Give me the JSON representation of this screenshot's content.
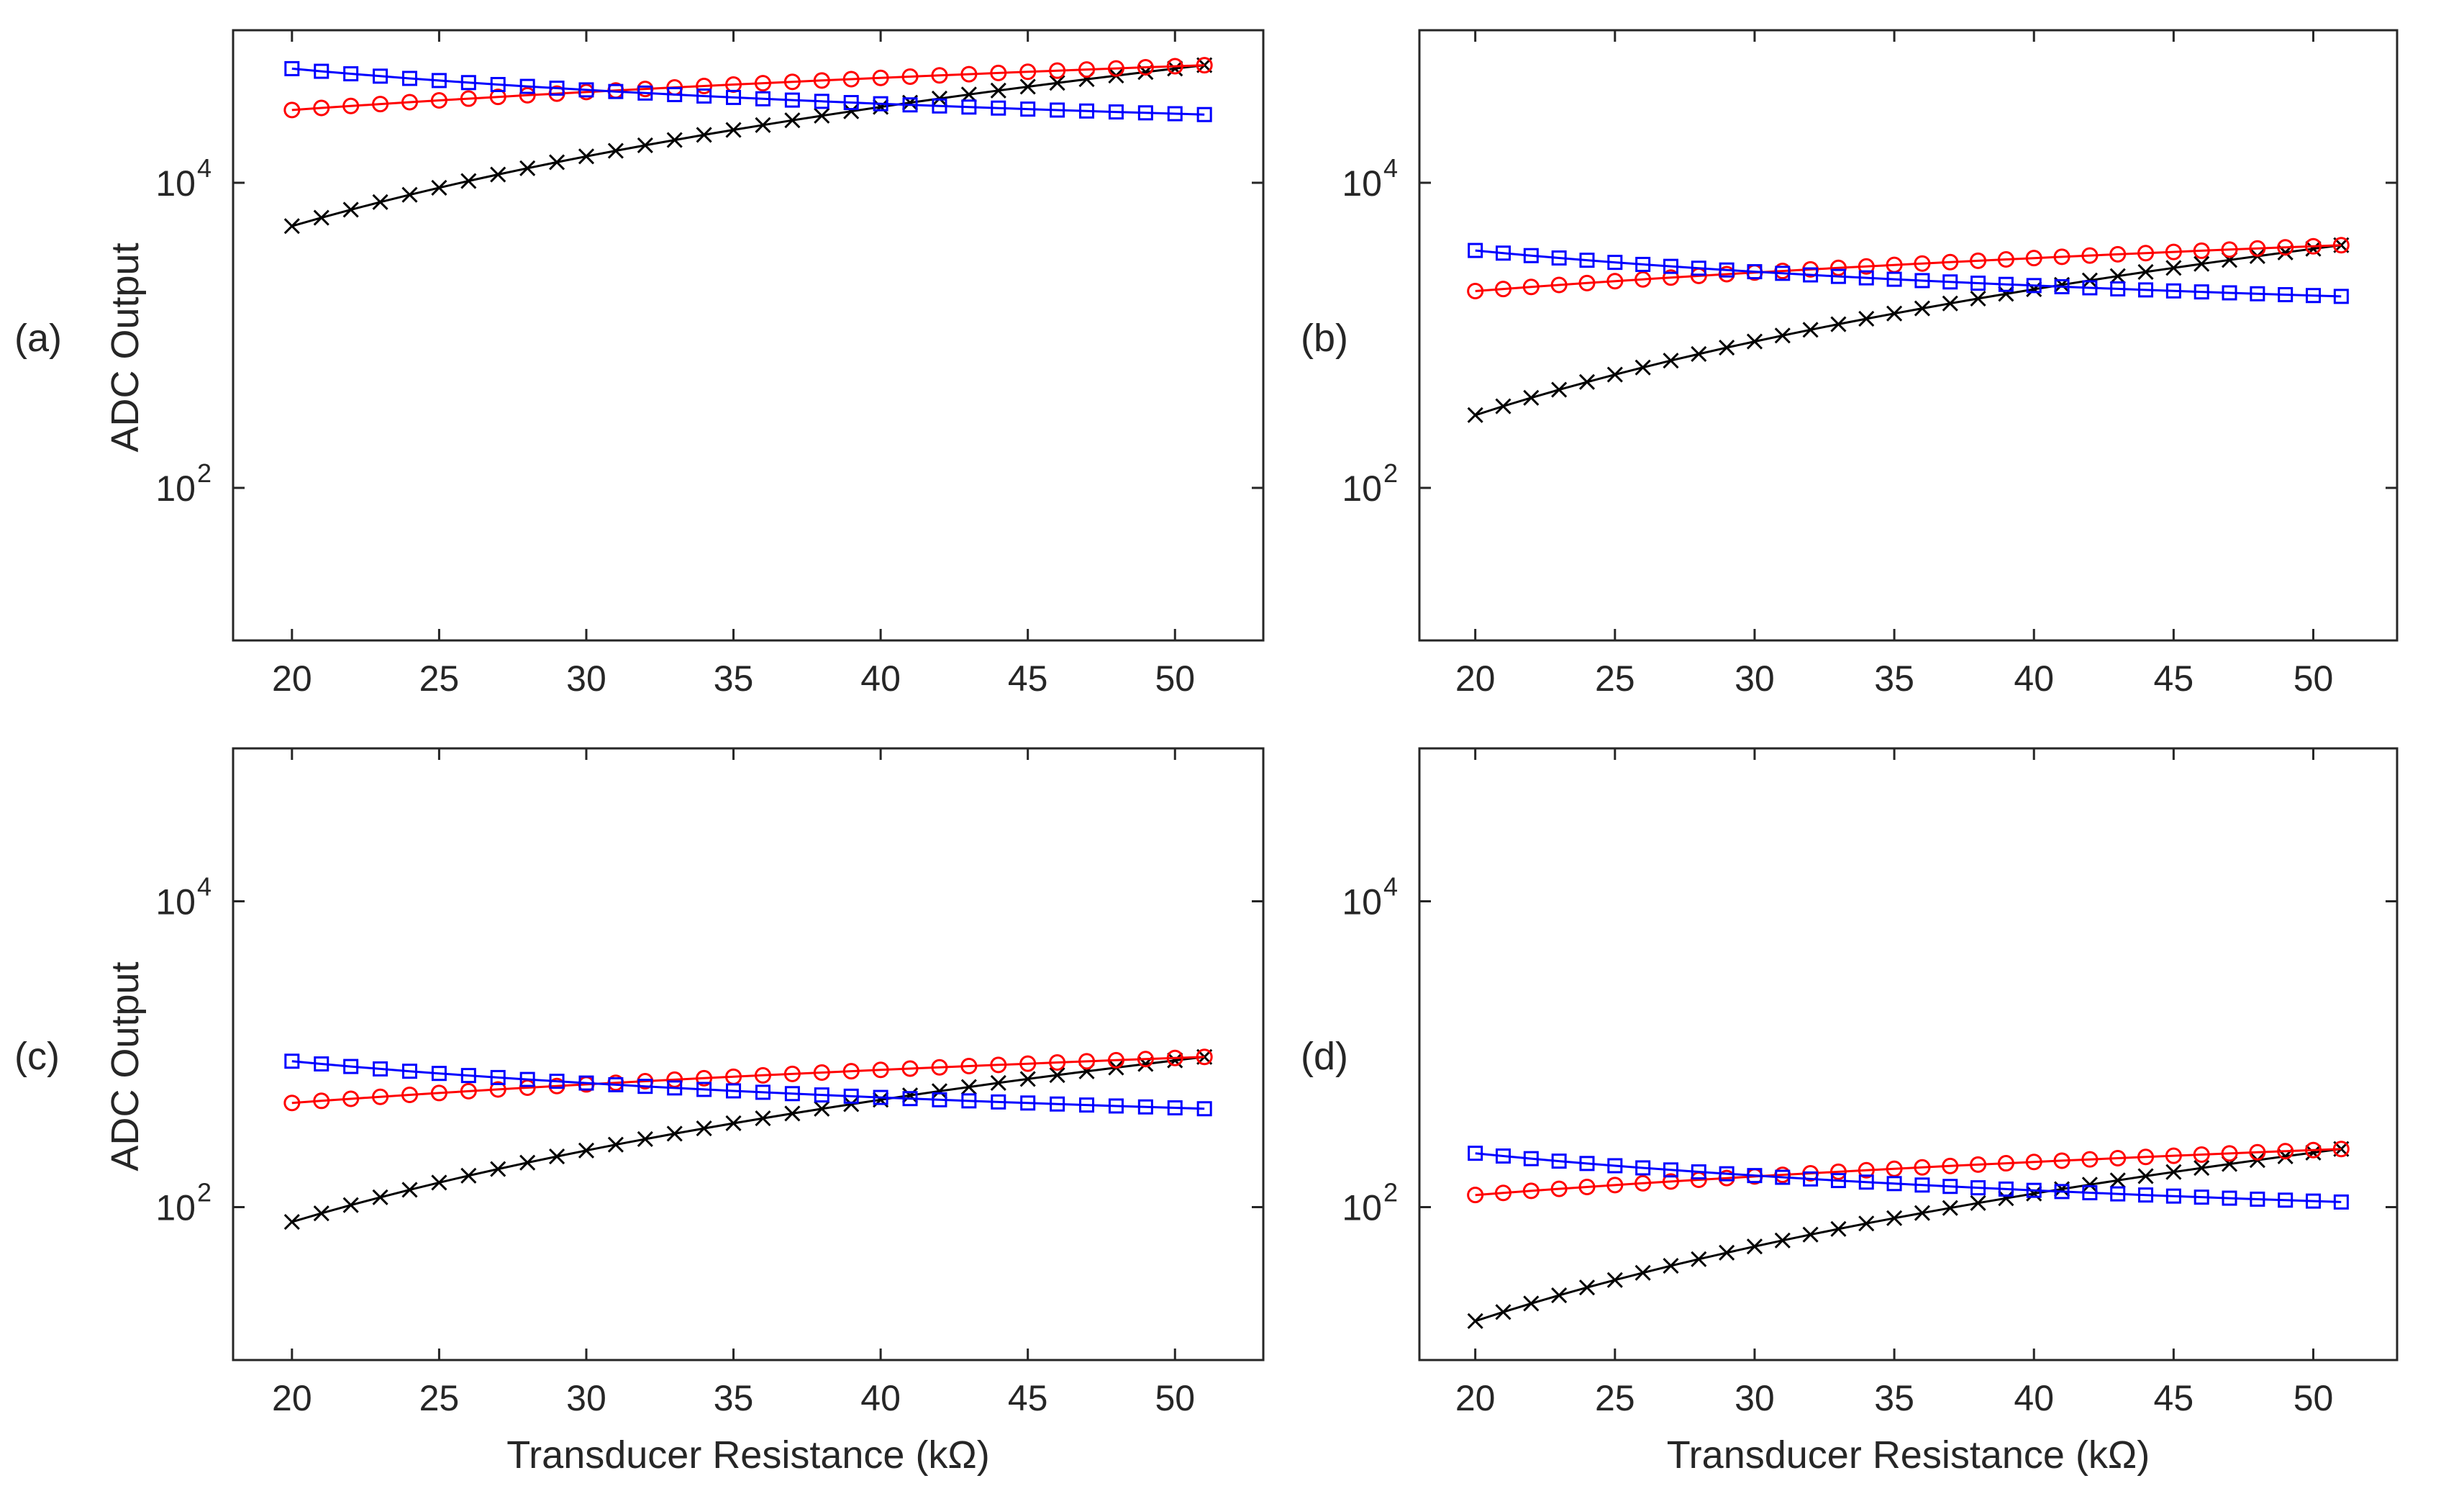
{
  "figure": {
    "y_axis_label": "ADC  Output",
    "x_axis_label": "Transducer Resistance  (kΩ)"
  },
  "colors": {
    "axes": "#262626",
    "series_black": "#000000",
    "series_red": "#ff0000",
    "series_blue": "#0000ff"
  },
  "chart_data": [
    {
      "panel_label": "(a)",
      "type": "line",
      "yscale": "log",
      "xlim": [
        18,
        53
      ],
      "ylim": [
        10,
        100000
      ],
      "x_ticks": [
        20,
        25,
        30,
        35,
        40,
        45,
        50
      ],
      "y_ticks": [
        {
          "value": 100,
          "label": "10",
          "exp": "2"
        },
        {
          "value": 10000,
          "label": "10",
          "exp": "4"
        }
      ],
      "xlabel": "",
      "ylabel": "ADC  Output",
      "x": [
        20,
        21,
        22,
        23,
        24,
        25,
        26,
        27,
        28,
        29,
        30,
        31,
        32,
        33,
        34,
        35,
        36,
        37,
        38,
        39,
        40,
        41,
        42,
        43,
        44,
        45,
        46,
        47,
        48,
        49,
        50,
        51
      ],
      "series": [
        {
          "name": "black",
          "marker": "x",
          "color": "#000000",
          "start": 5200,
          "end": 59000
        },
        {
          "name": "red",
          "marker": "o",
          "color": "#ff0000",
          "start": 30000,
          "end": 59000
        },
        {
          "name": "blue",
          "marker": "s",
          "color": "#0000ff",
          "start": 56000,
          "end": 28000
        }
      ]
    },
    {
      "panel_label": "(b)",
      "type": "line",
      "yscale": "log",
      "xlim": [
        18,
        53
      ],
      "ylim": [
        10,
        100000
      ],
      "x_ticks": [
        20,
        25,
        30,
        35,
        40,
        45,
        50
      ],
      "y_ticks": [
        {
          "value": 100,
          "label": "10",
          "exp": "2"
        },
        {
          "value": 10000,
          "label": "10",
          "exp": "4"
        }
      ],
      "xlabel": "",
      "ylabel": "",
      "x": [
        20,
        21,
        22,
        23,
        24,
        25,
        26,
        27,
        28,
        29,
        30,
        31,
        32,
        33,
        34,
        35,
        36,
        37,
        38,
        39,
        40,
        41,
        42,
        43,
        44,
        45,
        46,
        47,
        48,
        49,
        50,
        51
      ],
      "series": [
        {
          "name": "black",
          "marker": "x",
          "color": "#000000",
          "start": 300,
          "end": 3900
        },
        {
          "name": "red",
          "marker": "o",
          "color": "#ff0000",
          "start": 1950,
          "end": 3900
        },
        {
          "name": "blue",
          "marker": "s",
          "color": "#0000ff",
          "start": 3600,
          "end": 1800
        }
      ]
    },
    {
      "panel_label": "(c)",
      "type": "line",
      "yscale": "log",
      "xlim": [
        18,
        53
      ],
      "ylim": [
        10,
        100000
      ],
      "x_ticks": [
        20,
        25,
        30,
        35,
        40,
        45,
        50
      ],
      "y_ticks": [
        {
          "value": 100,
          "label": "10",
          "exp": "2"
        },
        {
          "value": 10000,
          "label": "10",
          "exp": "4"
        }
      ],
      "xlabel": "Transducer Resistance  (kΩ)",
      "ylabel": "ADC  Output",
      "x": [
        20,
        21,
        22,
        23,
        24,
        25,
        26,
        27,
        28,
        29,
        30,
        31,
        32,
        33,
        34,
        35,
        36,
        37,
        38,
        39,
        40,
        41,
        42,
        43,
        44,
        45,
        46,
        47,
        48,
        49,
        50,
        51
      ],
      "series": [
        {
          "name": "black",
          "marker": "x",
          "color": "#000000",
          "start": 80,
          "end": 960
        },
        {
          "name": "red",
          "marker": "o",
          "color": "#ff0000",
          "start": 480,
          "end": 960
        },
        {
          "name": "blue",
          "marker": "s",
          "color": "#0000ff",
          "start": 900,
          "end": 440
        }
      ]
    },
    {
      "panel_label": "(d)",
      "type": "line",
      "yscale": "log",
      "xlim": [
        18,
        53
      ],
      "ylim": [
        10,
        100000
      ],
      "x_ticks": [
        20,
        25,
        30,
        35,
        40,
        45,
        50
      ],
      "y_ticks": [
        {
          "value": 100,
          "label": "10",
          "exp": "2"
        },
        {
          "value": 10000,
          "label": "10",
          "exp": "4"
        }
      ],
      "xlabel": "Transducer Resistance  (kΩ)",
      "ylabel": "",
      "x": [
        20,
        21,
        22,
        23,
        24,
        25,
        26,
        27,
        28,
        29,
        30,
        31,
        32,
        33,
        34,
        35,
        36,
        37,
        38,
        39,
        40,
        41,
        42,
        43,
        44,
        45,
        46,
        47,
        48,
        49,
        50,
        51
      ],
      "series": [
        {
          "name": "black",
          "marker": "x",
          "color": "#000000",
          "start": 18,
          "end": 240
        },
        {
          "name": "red",
          "marker": "o",
          "color": "#ff0000",
          "start": 120,
          "end": 240
        },
        {
          "name": "blue",
          "marker": "s",
          "color": "#0000ff",
          "start": 225,
          "end": 108
        }
      ]
    }
  ]
}
